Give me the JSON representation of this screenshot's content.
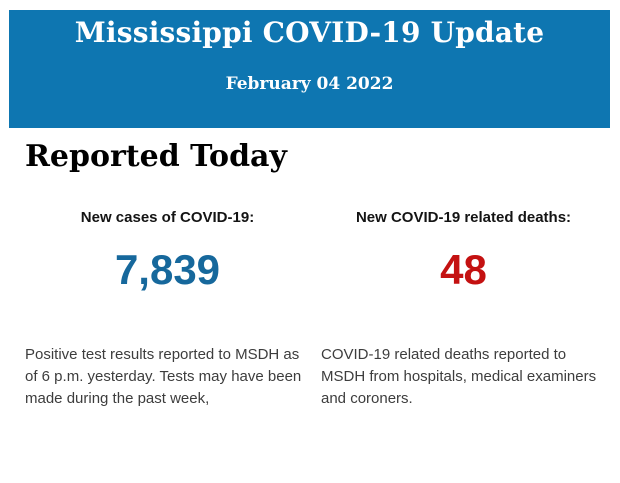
{
  "header": {
    "title": "Mississippi COVID-19 Update",
    "date": "February 04 2022"
  },
  "section": {
    "title": "Reported Today"
  },
  "stats": [
    {
      "label": "New cases of COVID-19:",
      "value": "7,839",
      "description": "Positive test results reported to MSDH as of 6 p.m. yesterday. Tests may have been made during the past week,"
    },
    {
      "label": "New COVID-19 related deaths:",
      "value": "48",
      "description": "COVID-19 related deaths reported to MSDH from hospitals, medical examiners and coroners."
    }
  ],
  "colors": {
    "banner_blue": "#0E76B1",
    "cases_blue": "#16689C",
    "deaths_red": "#C41111",
    "body_text": "#3D3D3D"
  }
}
